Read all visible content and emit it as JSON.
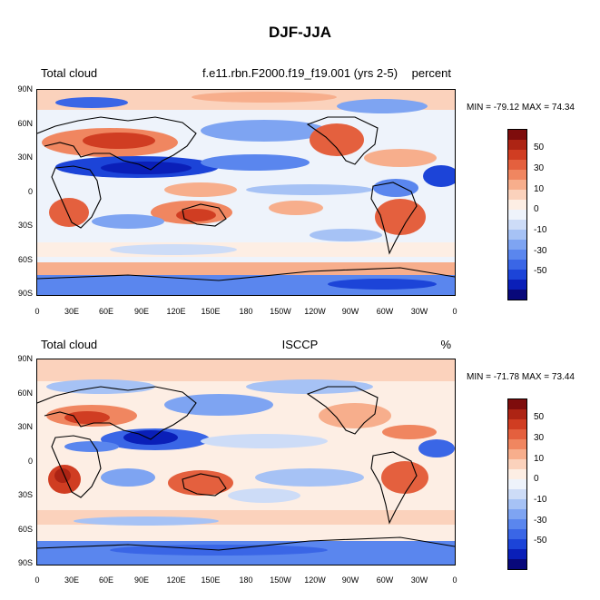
{
  "title": "DJF-JJA",
  "colors": {
    "palette": [
      "#08087a",
      "#0a1fb8",
      "#1c44d8",
      "#3a66e6",
      "#5a86ee",
      "#7ea4f2",
      "#a6c2f5",
      "#cddcf7",
      "#eef3fb",
      "#fdeee4",
      "#fbd2bc",
      "#f7ae8c",
      "#f08660",
      "#e4603e",
      "#d03d22",
      "#ad2414",
      "#7e0c0c"
    ]
  },
  "colorbar_labels": [
    "50",
    "30",
    "10",
    "0",
    "-10",
    "-30",
    "-50"
  ],
  "x_ticks": [
    "0",
    "30E",
    "60E",
    "90E",
    "120E",
    "150E",
    "180",
    "150W",
    "120W",
    "90W",
    "60W",
    "30W",
    "0"
  ],
  "y_ticks": [
    "90N",
    "60N",
    "30N",
    "0",
    "30S",
    "60S",
    "90S"
  ],
  "panels": [
    {
      "left_label": "Total cloud",
      "center_label": "f.e11.rbn.F2000.f19_f19.001 (yrs 2-5)",
      "right_label": "percent",
      "minmax": "MIN = -79.12 MAX =  74.34"
    },
    {
      "left_label": "Total cloud",
      "center_label": "ISCCP",
      "right_label": "%",
      "minmax": "MIN = -71.78 MAX =  73.44"
    }
  ]
}
